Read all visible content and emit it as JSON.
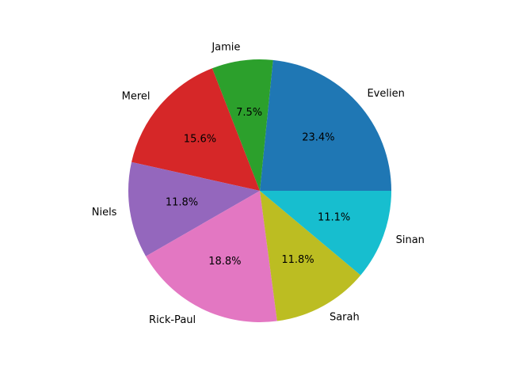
{
  "chart_data": {
    "type": "pie",
    "title": "",
    "start_angle_deg": 0,
    "direction": "counterclockwise",
    "slices": [
      {
        "label": "Evelien",
        "value": 23.4,
        "pct_label": "23.4%",
        "color": "#1f77b4"
      },
      {
        "label": "Jamie",
        "value": 7.5,
        "pct_label": "7.5%",
        "color": "#2ca02c"
      },
      {
        "label": "Merel",
        "value": 15.6,
        "pct_label": "15.6%",
        "color": "#d62728"
      },
      {
        "label": "Niels",
        "value": 11.8,
        "pct_label": "11.8%",
        "color": "#9467bd"
      },
      {
        "label": "Rick-Paul",
        "value": 18.8,
        "pct_label": "18.8%",
        "color": "#e377c2"
      },
      {
        "label": "Sarah",
        "value": 11.8,
        "pct_label": "11.8%",
        "color": "#bcbd22"
      },
      {
        "label": "Sinan",
        "value": 11.1,
        "pct_label": "11.1%",
        "color": "#17becf"
      }
    ]
  }
}
